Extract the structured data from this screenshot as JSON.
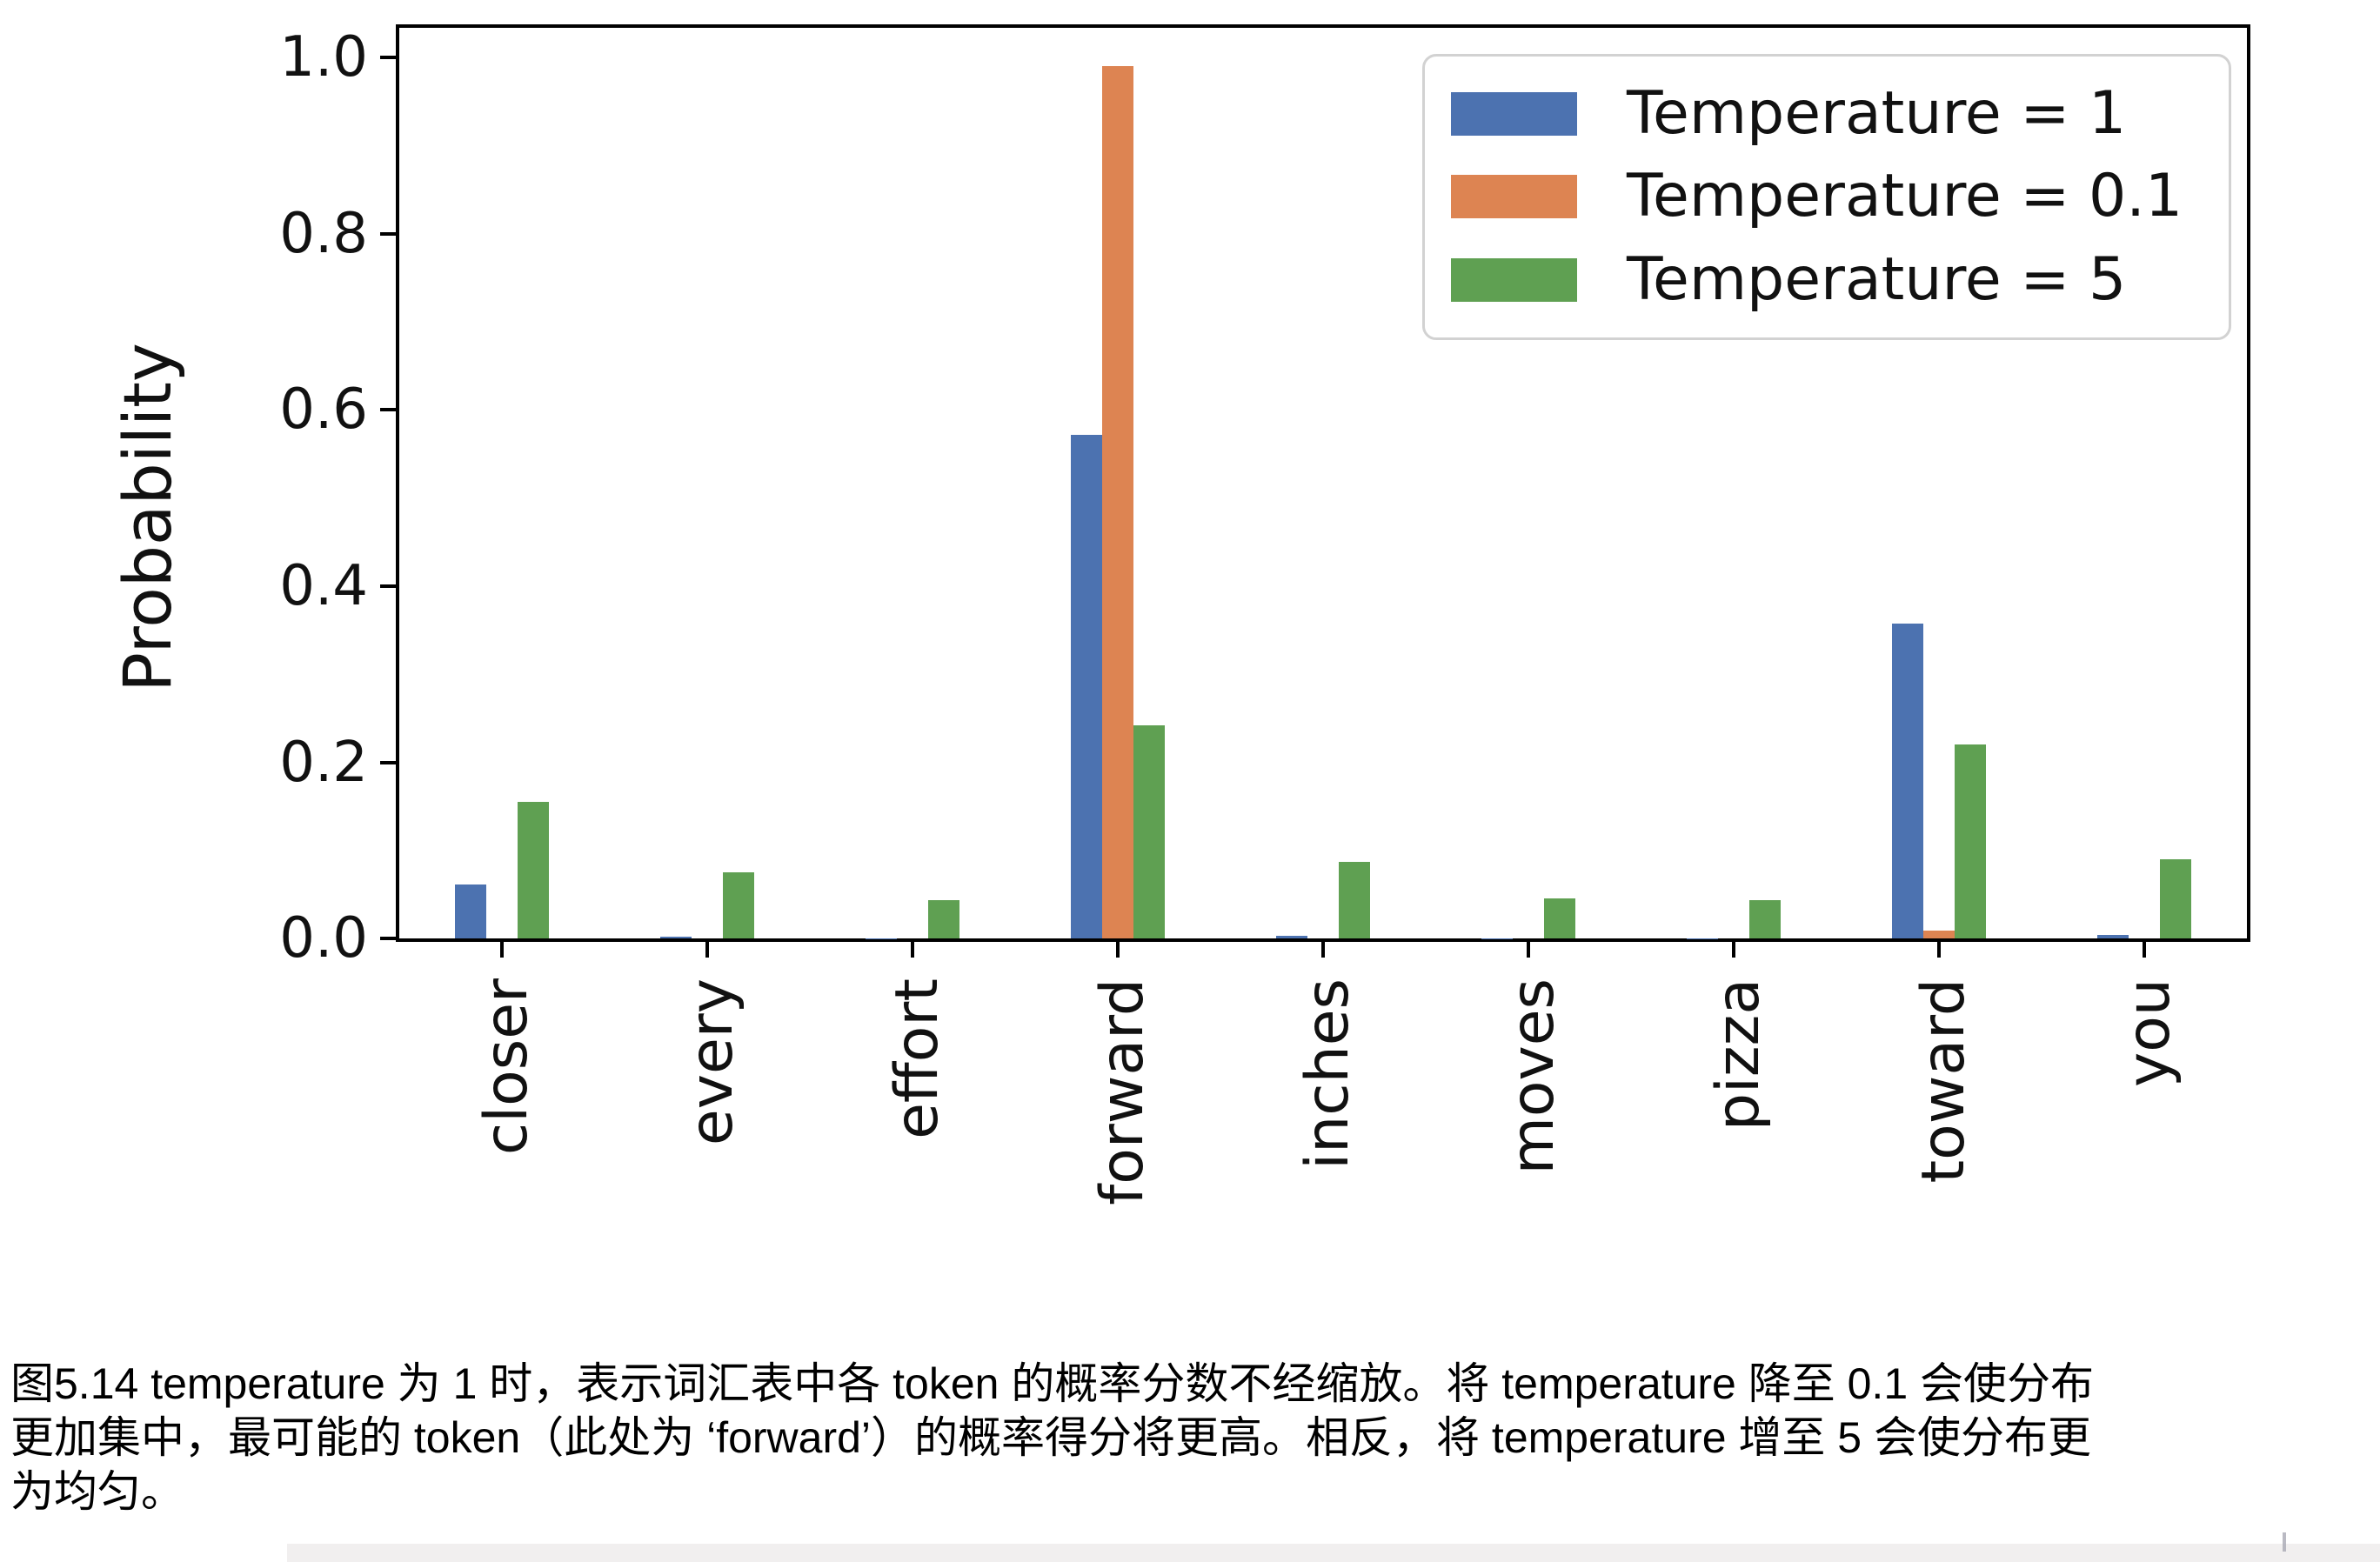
{
  "figure": {
    "ylabel": "Probability",
    "ytick_labels": [
      "0.0",
      "0.2",
      "0.4",
      "0.6",
      "0.8",
      "1.0"
    ],
    "legend": [
      {
        "label": "Temperature = 1",
        "color": "#4C72B0"
      },
      {
        "label": "Temperature = 0.1",
        "color": "#DD8452"
      },
      {
        "label": "Temperature = 5",
        "color": "#5FA052"
      }
    ],
    "axis_color": "#000000",
    "legend_border_color": "#d2d2d2"
  },
  "chart_data": {
    "type": "bar",
    "title": "",
    "xlabel": "",
    "ylabel": "Probability",
    "categories": [
      "closer",
      "every",
      "effort",
      "forward",
      "inches",
      "moves",
      "pizza",
      "toward",
      "you"
    ],
    "series": [
      {
        "name": "Temperature = 1",
        "color": "#4C72B0",
        "values": [
          0.061,
          0.002,
          0.0001,
          0.572,
          0.003,
          0.0001,
          0.0001,
          0.358,
          0.004
        ]
      },
      {
        "name": "Temperature = 0.1",
        "color": "#DD8452",
        "values": [
          0,
          0,
          0,
          0.991,
          0,
          0,
          0,
          0.009,
          0
        ]
      },
      {
        "name": "Temperature = 5",
        "color": "#5FA052",
        "values": [
          0.155,
          0.075,
          0.043,
          0.242,
          0.087,
          0.045,
          0.043,
          0.22,
          0.09
        ]
      }
    ],
    "yticks": [
      0.0,
      0.2,
      0.4,
      0.6,
      0.8,
      1.0
    ],
    "ylim": [
      0,
      1.034
    ],
    "grid": false,
    "legend_position": "upper right",
    "xtick_rotation": 90
  },
  "caption": {
    "lines": [
      "图5.14 temperature 为 1 时，表示词汇表中各 token 的概率分数不经缩放。将 temperature 降至 0.1 会使分布",
      "更加集中，最可能的 token（此处为 ‘forward’）的概率得分将更高。相反，将 temperature 增至 5 会使分布更",
      "为均匀。"
    ]
  }
}
